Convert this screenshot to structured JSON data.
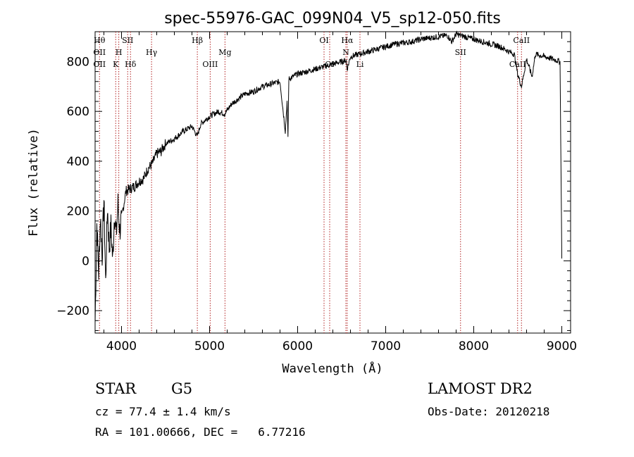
{
  "info": {
    "object_class": "STAR",
    "subclass": "G5",
    "survey": "LAMOST DR2",
    "cz": "cz = 77.4 ± 1.4 km/s",
    "obs_date": "Obs-Date: 20120218",
    "coords": "RA = 101.00666, DEC =   6.77216"
  },
  "chart_data": {
    "type": "line",
    "title": "spec-55976-GAC_099N04_V5_sp12-050.fits",
    "xlabel": "Wavelength (Å)",
    "ylabel": "Flux (relative)",
    "xlim": [
      3700,
      9100
    ],
    "ylim": [
      -290,
      920
    ],
    "x_ticks": [
      4000,
      5000,
      6000,
      7000,
      8000,
      9000
    ],
    "y_ticks": [
      -200,
      0,
      200,
      400,
      600,
      800
    ],
    "grid": false,
    "line_color": "#000000",
    "marker_color": "#b22222",
    "series": [
      {
        "x": [
          3700,
          3720,
          3740,
          3760,
          3780,
          3800,
          3820,
          3840,
          3860,
          3880,
          3900,
          3920,
          3940,
          3960,
          3980,
          4000,
          4050,
          4100,
          4150,
          4200,
          4250,
          4300,
          4350,
          4400,
          4450,
          4500,
          4600,
          4700,
          4800,
          4860,
          4900,
          5000,
          5100,
          5170,
          5250,
          5400,
          5500,
          5600,
          5700,
          5800,
          5860,
          5880,
          5890,
          5900,
          5950,
          6000,
          6100,
          6200,
          6300,
          6400,
          6500,
          6550,
          6563,
          6600,
          6700,
          6800,
          6900,
          7000,
          7100,
          7200,
          7300,
          7400,
          7500,
          7600,
          7700,
          7750,
          7800,
          7900,
          8000,
          8100,
          8200,
          8300,
          8400,
          8460,
          8498,
          8542,
          8600,
          8662,
          8700,
          8800,
          8900,
          8980,
          9000
        ],
        "y": [
          -250,
          150,
          -50,
          180,
          20,
          250,
          -90,
          220,
          50,
          140,
          0,
          200,
          100,
          230,
          120,
          170,
          280,
          290,
          300,
          320,
          330,
          370,
          390,
          430,
          440,
          470,
          490,
          520,
          540,
          500,
          550,
          580,
          600,
          590,
          630,
          670,
          680,
          700,
          710,
          720,
          520,
          640,
          500,
          730,
          740,
          750,
          760,
          770,
          780,
          790,
          800,
          805,
          770,
          820,
          830,
          840,
          850,
          860,
          870,
          875,
          880,
          890,
          895,
          900,
          905,
          880,
          910,
          900,
          890,
          880,
          870,
          860,
          840,
          830,
          750,
          700,
          810,
          740,
          830,
          820,
          810,
          800,
          20
        ]
      }
    ],
    "lines": [
      {
        "wl": 3750,
        "top": "Hθ",
        "mid": "OII",
        "low": "OII"
      },
      {
        "wl": 3934,
        "top": "",
        "mid": "",
        "low": "K"
      },
      {
        "wl": 3969,
        "top": "",
        "mid": "H",
        "low": ""
      },
      {
        "wl": 4070,
        "top": "SII",
        "mid": "",
        "low": ""
      },
      {
        "wl": 4102,
        "top": "",
        "mid": "",
        "low": "Hδ"
      },
      {
        "wl": 4341,
        "top": "",
        "mid": "Hγ",
        "low": ""
      },
      {
        "wl": 4861,
        "top": "Hβ",
        "mid": "",
        "low": ""
      },
      {
        "wl": 5007,
        "top": "",
        "mid": "",
        "low": "OIII"
      },
      {
        "wl": 5175,
        "top": "",
        "mid": "Mg",
        "low": ""
      },
      {
        "wl": 6300,
        "top": "OI",
        "mid": "",
        "low": ""
      },
      {
        "wl": 6364,
        "top": "",
        "mid": "",
        "low": "OI"
      },
      {
        "wl": 6548,
        "top": "",
        "mid": "N",
        "low": ""
      },
      {
        "wl": 6563,
        "top": "Hα",
        "mid": "",
        "low": ""
      },
      {
        "wl": 6708,
        "top": "",
        "mid": "",
        "low": "Li"
      },
      {
        "wl": 7850,
        "top": "",
        "mid": "SII",
        "low": ""
      },
      {
        "wl": 8498,
        "top": "",
        "mid": "",
        "low": "CaII"
      },
      {
        "wl": 8542,
        "top": "CaII",
        "mid": "",
        "low": ""
      }
    ]
  }
}
